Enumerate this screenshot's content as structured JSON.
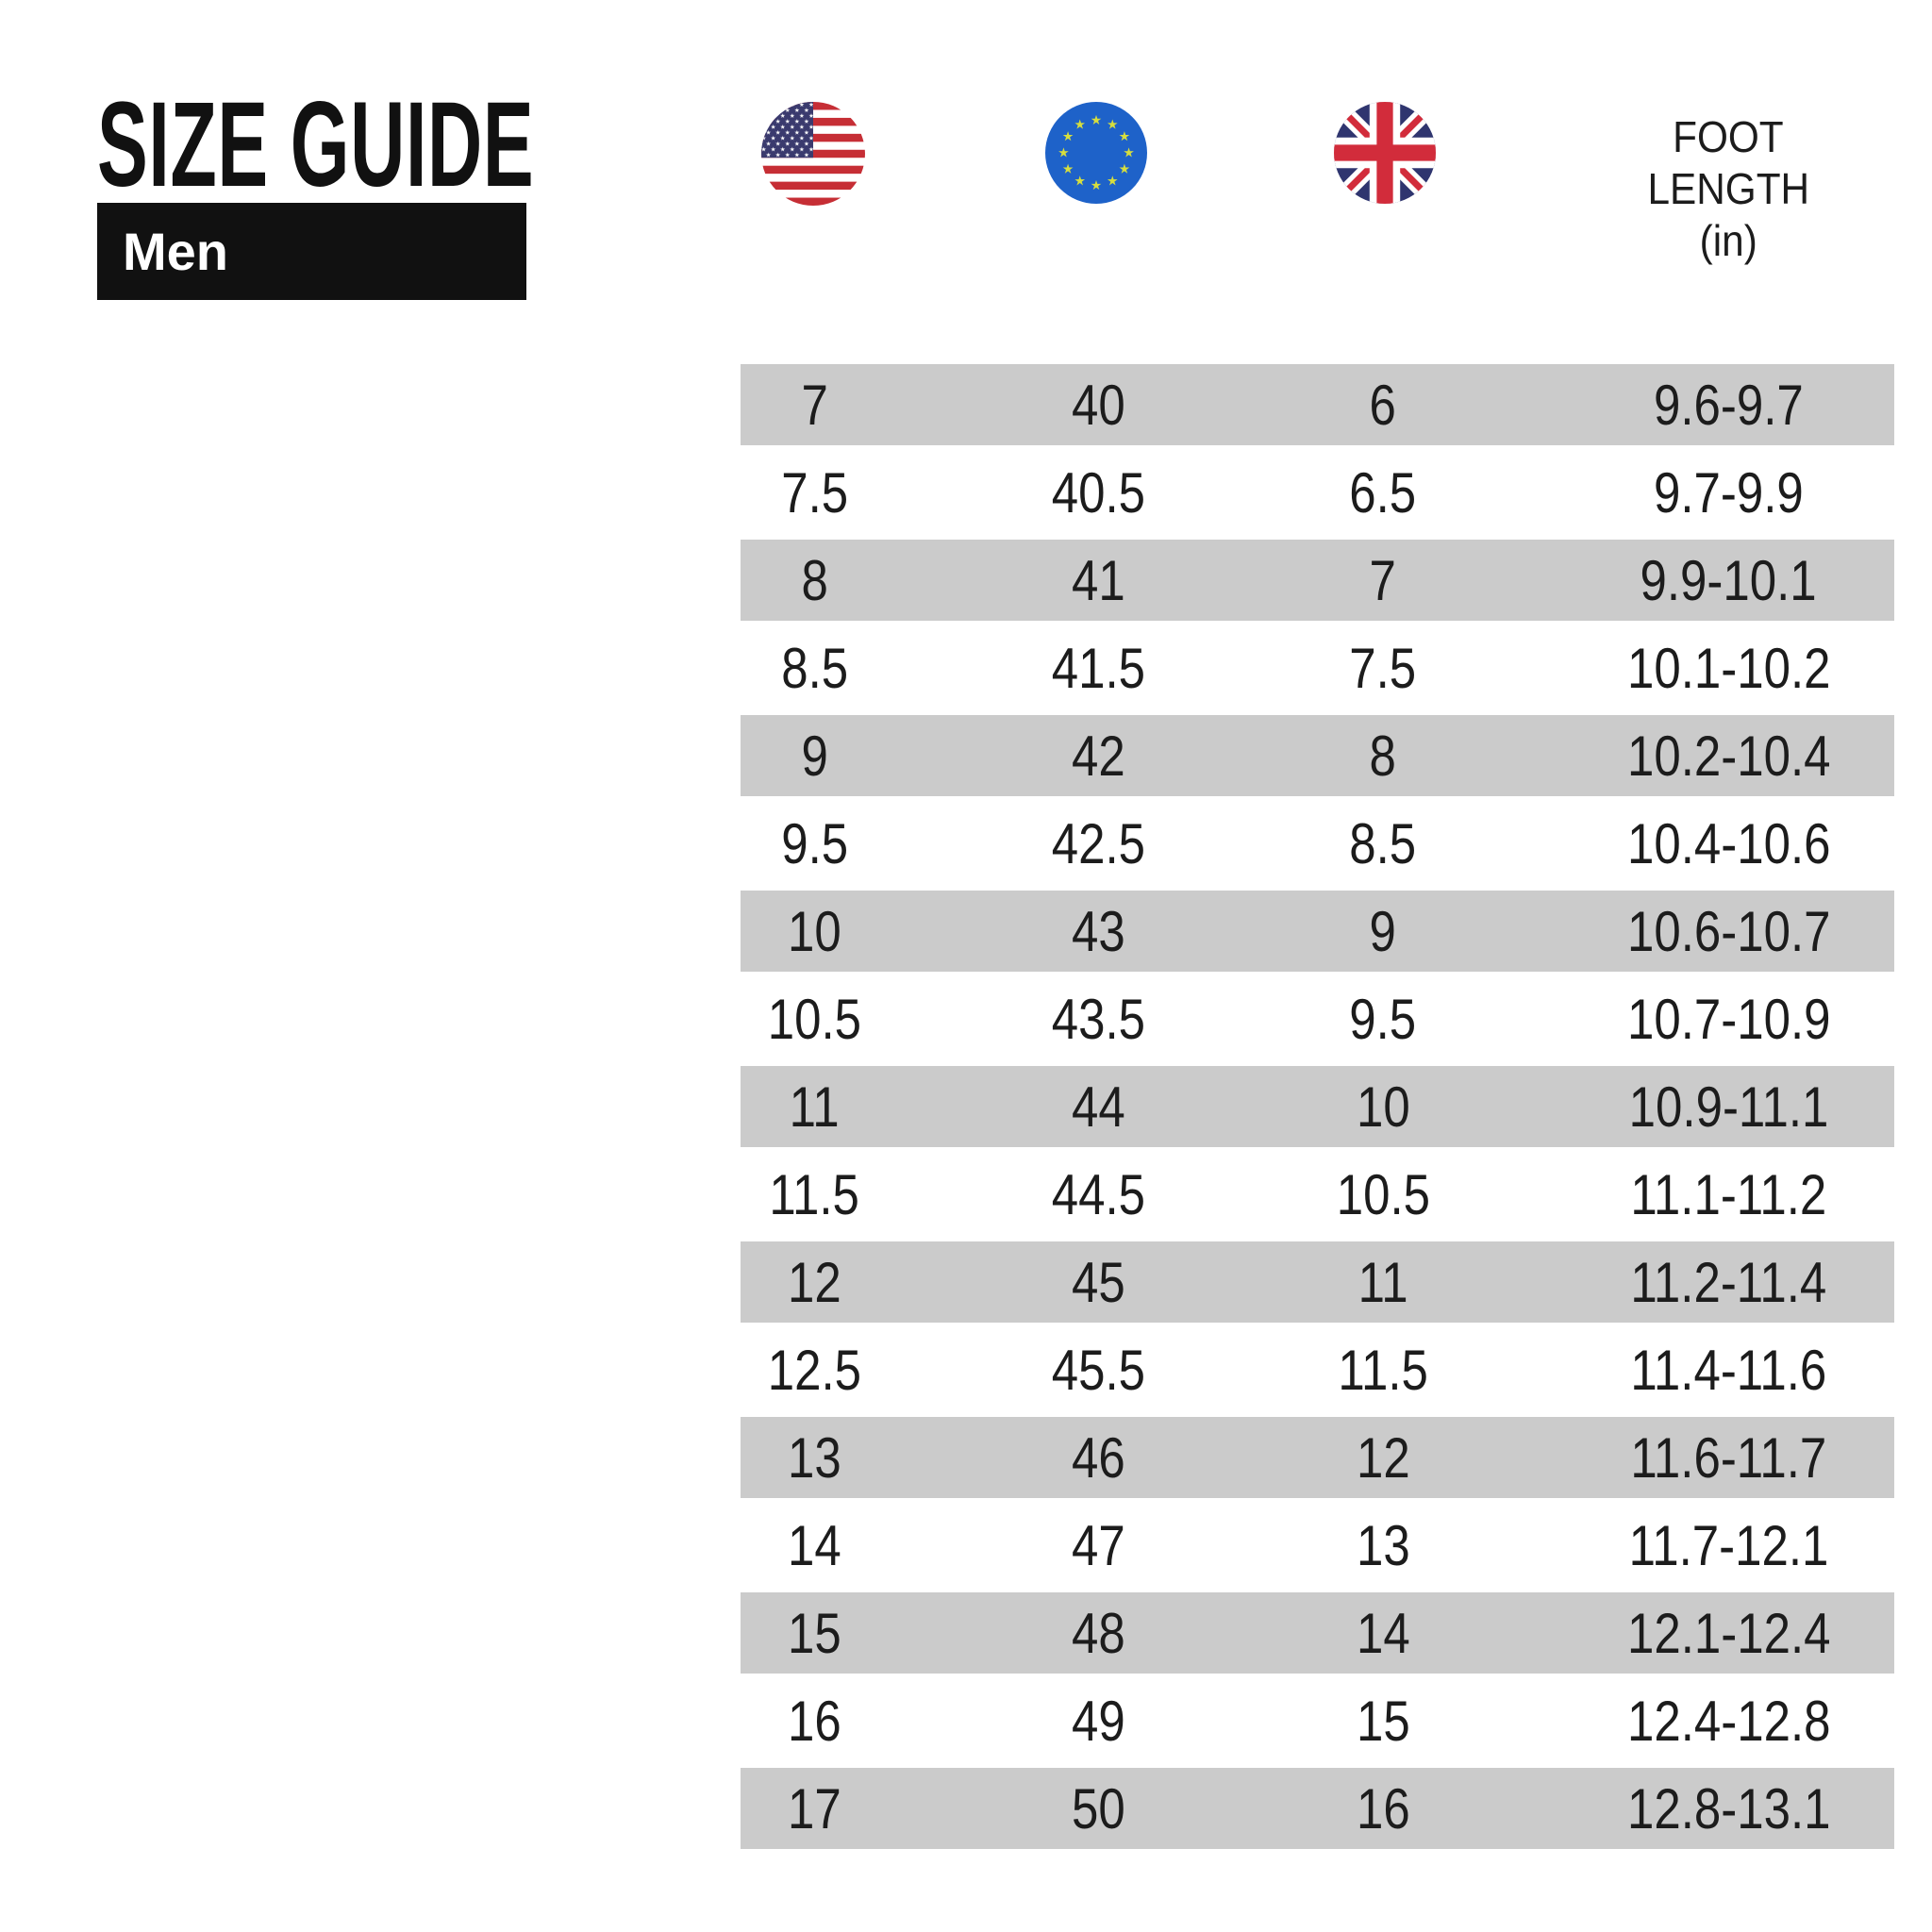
{
  "title": "SIZE GUIDE",
  "category_label": "Men",
  "header": {
    "columns": [
      {
        "icon": "us-flag-icon",
        "region": "US"
      },
      {
        "icon": "eu-flag-icon",
        "region": "EU"
      },
      {
        "icon": "uk-flag-icon",
        "region": "UK"
      },
      {
        "label_lines": [
          "FOOT",
          "LENGTH",
          "(in)"
        ],
        "region": "FOOT LENGTH (in)"
      }
    ]
  },
  "table": {
    "rows": [
      [
        "7",
        "40",
        "6",
        "9.6-9.7"
      ],
      [
        "7.5",
        "40.5",
        "6.5",
        "9.7-9.9"
      ],
      [
        "8",
        "41",
        "7",
        "9.9-10.1"
      ],
      [
        "8.5",
        "41.5",
        "7.5",
        "10.1-10.2"
      ],
      [
        "9",
        "42",
        "8",
        "10.2-10.4"
      ],
      [
        "9.5",
        "42.5",
        "8.5",
        "10.4-10.6"
      ],
      [
        "10",
        "43",
        "9",
        "10.6-10.7"
      ],
      [
        "10.5",
        "43.5",
        "9.5",
        "10.7-10.9"
      ],
      [
        "11",
        "44",
        "10",
        "10.9-11.1"
      ],
      [
        "11.5",
        "44.5",
        "10.5",
        "11.1-11.2"
      ],
      [
        "12",
        "45",
        "11",
        "11.2-11.4"
      ],
      [
        "12.5",
        "45.5",
        "11.5",
        "11.4-11.6"
      ],
      [
        "13",
        "46",
        "12",
        "11.6-11.7"
      ],
      [
        "14",
        "47",
        "13",
        "11.7-12.1"
      ],
      [
        "15",
        "48",
        "14",
        "12.1-12.4"
      ],
      [
        "16",
        "49",
        "15",
        "12.4-12.8"
      ],
      [
        "17",
        "50",
        "16",
        "12.8-13.1"
      ]
    ]
  },
  "colors": {
    "black": "#111111",
    "text": "#1c1c1c",
    "banner_text": "#ffffff",
    "row_stripe": "#cbcbcb",
    "us_red": "#c62e35",
    "us_navy": "#3a3a6e",
    "eu_blue": "#1e62c9",
    "eu_star": "#d6de3e",
    "uk_navy": "#2f356f",
    "uk_red": "#d22c3b"
  }
}
